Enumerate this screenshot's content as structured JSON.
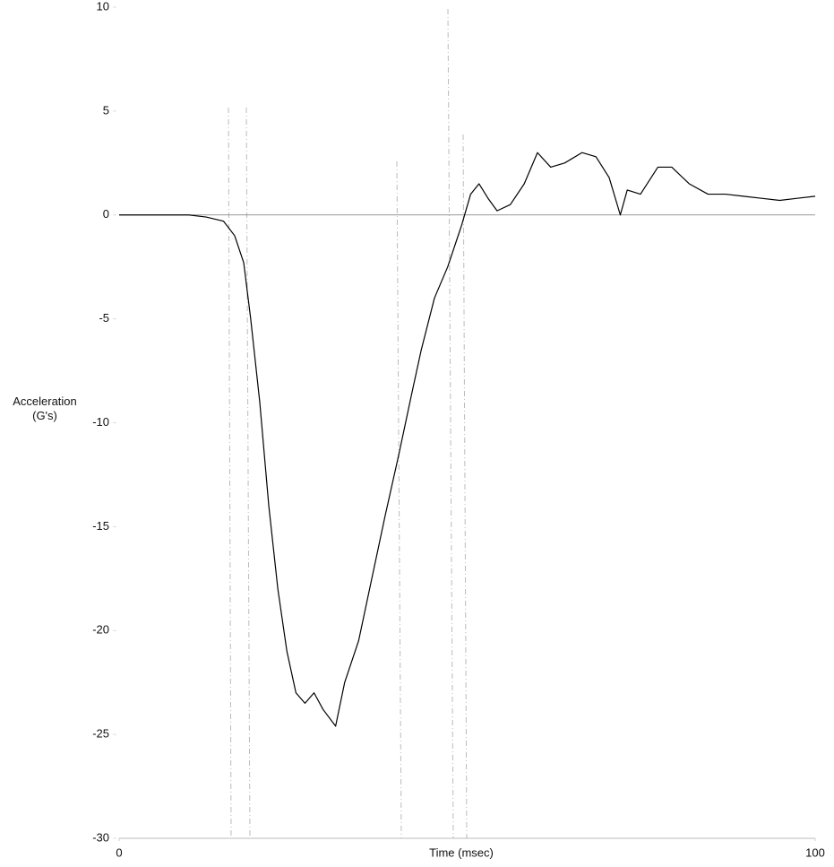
{
  "chart_data": {
    "type": "line",
    "xlabel": "Time (msec)",
    "ylabel": "Acceleration (G's)",
    "x": [
      0,
      5,
      10,
      12.5,
      15,
      16.6,
      17.9,
      18.9,
      20.2,
      21.5,
      22.8,
      24.1,
      25.4,
      26.7,
      28,
      29.3,
      31.1,
      32.4,
      34.4,
      36.3,
      38.2,
      40.2,
      42.1,
      43.4,
      45.3,
      47.2,
      49.2,
      50.5,
      51.7,
      53,
      54.3,
      56.2,
      58.2,
      60.1,
      62,
      64,
      66.5,
      68.5,
      70.4,
      72,
      73,
      74.9,
      77.4,
      79.4,
      81.9,
      84.6,
      87.1,
      89.7,
      92.3,
      94.9,
      97.4,
      100
    ],
    "series": [
      {
        "name": "Acceleration",
        "color": "#000000",
        "values": [
          0,
          0,
          0,
          -0.1,
          -0.3,
          -1,
          -2.3,
          -5,
          -9,
          -14,
          -18,
          -21,
          -23,
          -23.5,
          -23,
          -23.8,
          -24.6,
          -22.5,
          -20.5,
          -17.5,
          -14.5,
          -11.5,
          -8.5,
          -6.5,
          -4,
          -2.5,
          -0.5,
          1,
          1.5,
          0.8,
          0.2,
          0.5,
          1.5,
          3,
          2.3,
          2.5,
          3,
          2.8,
          1.8,
          0,
          1.2,
          1,
          2.3,
          2.3,
          1.5,
          1,
          1,
          0.9,
          0.8,
          0.7,
          0.8,
          0.9
        ]
      }
    ],
    "xlim": [
      0,
      100
    ],
    "xticks": [
      0,
      100
    ],
    "ylim": [
      -30,
      10
    ],
    "yticks": [
      -30,
      -25,
      -20,
      -15,
      -10,
      -5,
      0,
      5,
      10
    ]
  }
}
